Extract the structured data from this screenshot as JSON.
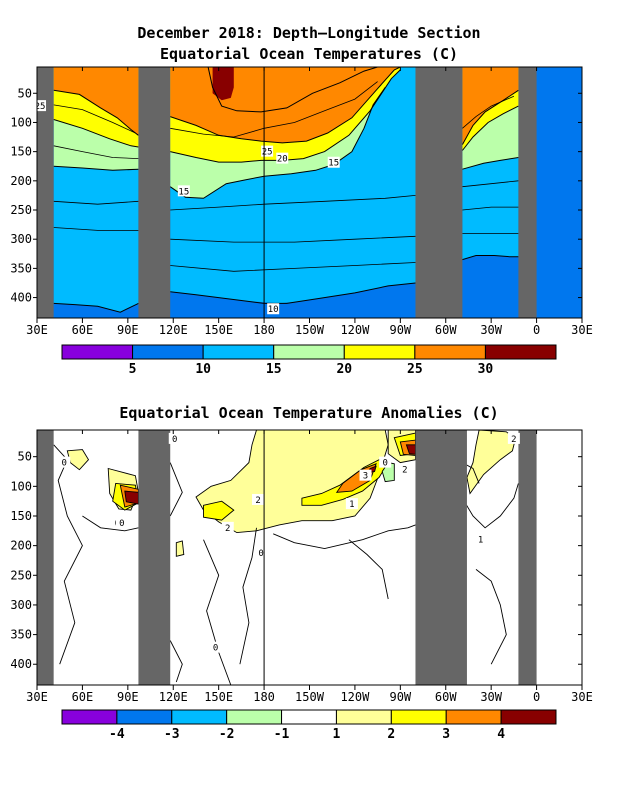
{
  "page": {
    "background": "#ffffff"
  },
  "chart_data": [
    {
      "type": "heatmap",
      "title": "December 2018: Depth—Longitude Section",
      "subtitle": "Equatorial Ocean Temperatures (C)",
      "x_ticks": [
        "30E",
        "60E",
        "90E",
        "120E",
        "150E",
        "180",
        "150W",
        "120W",
        "90W",
        "60W",
        "30W",
        "0",
        "30E"
      ],
      "y_ticks": [
        "50",
        "100",
        "150",
        "200",
        "250",
        "300",
        "350",
        "400"
      ],
      "ylim": [
        435,
        5
      ],
      "land_color": "#666666",
      "land_masks_lon": [
        [
          30,
          41
        ],
        [
          97,
          118
        ],
        [
          280,
          311
        ],
        [
          348,
          360
        ]
      ],
      "colorbar": {
        "colors": [
          "#8800dd",
          "#0077ee",
          "#00bbff",
          "#bbffaa",
          "#ffff00",
          "#ff8800",
          "#880000"
        ],
        "bounds": [
          0,
          5,
          10,
          15,
          20,
          25,
          30,
          35
        ],
        "labels": [
          "5",
          "10",
          "15",
          "20",
          "25",
          "30"
        ]
      },
      "contour_labels": [
        {
          "text": "25",
          "lon": 32,
          "depth": 72
        },
        {
          "text": "15",
          "lon": 127,
          "depth": 218
        },
        {
          "text": "25",
          "lon": 182,
          "depth": 150
        },
        {
          "text": "20",
          "lon": 192,
          "depth": 162
        },
        {
          "text": "15",
          "lon": 226,
          "depth": 169
        },
        {
          "text": "10",
          "lon": 186,
          "depth": 420
        }
      ],
      "isotherms": [
        {
          "temp": 28,
          "west": [
            [
              41,
              5
            ],
            [
              97,
              5
            ]
          ],
          "mid": [
            [
              118,
              5
            ],
            [
              143,
              5
            ],
            [
              146,
              40
            ],
            [
              152,
              72
            ],
            [
              162,
              80
            ],
            [
              178,
              82
            ],
            [
              195,
              75
            ],
            [
              212,
              50
            ],
            [
              230,
              32
            ],
            [
              246,
              12
            ],
            [
              255,
              5
            ]
          ],
          "east": [
            [
              311,
              5
            ],
            [
              345,
              5
            ]
          ]
        },
        {
          "temp": 25,
          "west": [
            [
              41,
              45
            ],
            [
              58,
              52
            ],
            [
              72,
              75
            ],
            [
              83,
              92
            ],
            [
              92,
              112
            ],
            [
              97,
              122
            ]
          ],
          "mid": [
            [
              118,
              90
            ],
            [
              135,
              105
            ],
            [
              150,
              122
            ],
            [
              165,
              128
            ],
            [
              178,
              132
            ],
            [
              192,
              135
            ],
            [
              208,
              132
            ],
            [
              222,
              118
            ],
            [
              238,
              92
            ],
            [
              254,
              45
            ],
            [
              266,
              10
            ],
            [
              270,
              5
            ]
          ],
          "east": [
            [
              311,
              138
            ],
            [
              318,
              105
            ],
            [
              326,
              82
            ],
            [
              338,
              62
            ],
            [
              348,
              45
            ]
          ]
        },
        {
          "temp": 20,
          "west": [
            [
              41,
              95
            ],
            [
              60,
              110
            ],
            [
              78,
              128
            ],
            [
              92,
              140
            ],
            [
              97,
              142
            ]
          ],
          "mid": [
            [
              118,
              150
            ],
            [
              135,
              160
            ],
            [
              150,
              168
            ],
            [
              165,
              168
            ],
            [
              178,
              165
            ],
            [
              192,
              165
            ],
            [
              206,
              162
            ],
            [
              220,
              150
            ],
            [
              236,
              122
            ],
            [
              250,
              80
            ],
            [
              264,
              25
            ],
            [
              270,
              10
            ]
          ],
          "east": [
            [
              311,
              148
            ],
            [
              318,
              125
            ],
            [
              328,
              100
            ],
            [
              338,
              85
            ],
            [
              348,
              72
            ]
          ]
        },
        {
          "temp": 15,
          "west": [
            [
              41,
              175
            ],
            [
              60,
              178
            ],
            [
              80,
              182
            ],
            [
              97,
              180
            ]
          ],
          "mid": [
            [
              118,
              210
            ],
            [
              128,
              228
            ],
            [
              140,
              230
            ],
            [
              155,
              205
            ],
            [
              168,
              198
            ],
            [
              180,
              192
            ],
            [
              198,
              188
            ],
            [
              214,
              182
            ],
            [
              226,
              172
            ],
            [
              238,
              150
            ],
            [
              246,
              110
            ],
            [
              252,
              70
            ],
            [
              260,
              40
            ]
          ],
          "east": [
            [
              311,
              180
            ],
            [
              325,
              170
            ],
            [
              336,
              165
            ],
            [
              348,
              160
            ]
          ]
        },
        {
          "temp": 10,
          "west": [
            [
              41,
              410
            ],
            [
              55,
              412
            ],
            [
              70,
              415
            ],
            [
              85,
              425
            ],
            [
              97,
              410
            ]
          ],
          "mid": [
            [
              118,
              390
            ],
            [
              135,
              395
            ],
            [
              150,
              400
            ],
            [
              165,
              405
            ],
            [
              180,
              410
            ],
            [
              195,
              410
            ],
            [
              215,
              402
            ],
            [
              240,
              392
            ],
            [
              262,
              380
            ],
            [
              280,
              375
            ]
          ],
          "east": [
            [
              311,
              335
            ],
            [
              320,
              328
            ],
            [
              332,
              328
            ],
            [
              342,
              330
            ],
            [
              348,
              330
            ]
          ]
        }
      ]
    },
    {
      "type": "heatmap",
      "title": "Equatorial Ocean Temperature Anomalies (C)",
      "x_ticks": [
        "30E",
        "60E",
        "90E",
        "120E",
        "150E",
        "180",
        "150W",
        "120W",
        "90W",
        "60W",
        "30W",
        "0",
        "30E"
      ],
      "y_ticks": [
        "50",
        "100",
        "150",
        "200",
        "250",
        "300",
        "350",
        "400"
      ],
      "ylim": [
        435,
        5
      ],
      "land_color": "#666666",
      "land_masks_lon": [
        [
          30,
          41
        ],
        [
          97,
          118
        ],
        [
          280,
          314
        ],
        [
          348,
          360
        ]
      ],
      "colorbar": {
        "colors": [
          "#8800dd",
          "#0077ee",
          "#00bbff",
          "#bbffaa",
          "#ffffff",
          "#ffff99",
          "#ffff00",
          "#ff8800",
          "#880000"
        ],
        "bounds": [
          -5,
          -4,
          -3,
          -2,
          -1,
          1,
          2,
          3,
          4,
          5
        ],
        "labels": [
          "-4",
          "-3",
          "-2",
          "-1",
          "1",
          "2",
          "3",
          "4"
        ]
      },
      "contour_labels": [
        {
          "text": "0",
          "lon": 48,
          "depth": 60
        },
        {
          "text": "0",
          "lon": 121,
          "depth": 20
        },
        {
          "text": "0",
          "lon": 83,
          "depth": 162
        },
        {
          "text": "0",
          "lon": 86,
          "depth": 162
        },
        {
          "text": "2",
          "lon": 176,
          "depth": 123
        },
        {
          "text": "2",
          "lon": 156,
          "depth": 170
        },
        {
          "text": "0",
          "lon": 178,
          "depth": 212
        },
        {
          "text": "1",
          "lon": 238,
          "depth": 130
        },
        {
          "text": "3",
          "lon": 247,
          "depth": 82
        },
        {
          "text": "0",
          "lon": 260,
          "depth": 60
        },
        {
          "text": "2",
          "lon": 273,
          "depth": 72
        },
        {
          "text": "2",
          "lon": 345,
          "depth": 20
        },
        {
          "text": "1",
          "lon": 323,
          "depth": 190
        },
        {
          "text": "0",
          "lon": 148,
          "depth": 372
        }
      ],
      "anomaly_regions": [
        {
          "value": 1.5,
          "poly": [
            [
              175,
              5
            ],
            [
              260,
              5
            ],
            [
              262,
              30
            ],
            [
              256,
              80
            ],
            [
              250,
              120
            ],
            [
              240,
              150
            ],
            [
              225,
              158
            ],
            [
              205,
              158
            ],
            [
              190,
              165
            ],
            [
              175,
              175
            ],
            [
              162,
              178
            ],
            [
              150,
              160
            ],
            [
              140,
              140
            ],
            [
              135,
              118
            ],
            [
              145,
              100
            ],
            [
              158,
              90
            ],
            [
              170,
              60
            ],
            [
              172,
              30
            ]
          ]
        },
        {
          "value": 1.5,
          "poly": [
            [
              262,
              5
            ],
            [
              280,
              5
            ],
            [
              280,
              55
            ],
            [
              270,
              60
            ],
            [
              262,
              45
            ]
          ]
        },
        {
          "value": 1.5,
          "poly": [
            [
              322,
              5
            ],
            [
              340,
              8
            ],
            [
              346,
              20
            ],
            [
              344,
              40
            ],
            [
              336,
              55
            ],
            [
              325,
              80
            ],
            [
              316,
              112
            ],
            [
              314,
              85
            ],
            [
              318,
              60
            ],
            [
              320,
              30
            ]
          ]
        },
        {
          "value": 1.5,
          "poly": [
            [
              50,
              40
            ],
            [
              60,
              38
            ],
            [
              64,
              55
            ],
            [
              58,
              72
            ],
            [
              52,
              60
            ]
          ]
        },
        {
          "value": 1.5,
          "poly": [
            [
              77,
              70
            ],
            [
              95,
              82
            ],
            [
              97,
              110
            ],
            [
              92,
              140
            ],
            [
              84,
              138
            ],
            [
              78,
              112
            ]
          ]
        },
        {
          "value": 2.5,
          "poly": [
            [
              205,
              120
            ],
            [
              218,
              112
            ],
            [
              230,
              98
            ],
            [
              246,
              68
            ],
            [
              256,
              55
            ],
            [
              262,
              60
            ],
            [
              256,
              85
            ],
            [
              245,
              108
            ],
            [
              232,
              122
            ],
            [
              218,
              132
            ],
            [
              205,
              132
            ]
          ]
        },
        {
          "value": 2.5,
          "poly": [
            [
              140,
              132
            ],
            [
              152,
              125
            ],
            [
              160,
              140
            ],
            [
              152,
              157
            ],
            [
              140,
              152
            ]
          ]
        },
        {
          "value": 2.5,
          "poly": [
            [
              82,
              95
            ],
            [
              95,
              98
            ],
            [
              97,
              128
            ],
            [
              88,
              140
            ],
            [
              80,
              125
            ]
          ]
        },
        {
          "value": 2.5,
          "poly": [
            [
              266,
              18
            ],
            [
              280,
              10
            ],
            [
              280,
              45
            ],
            [
              270,
              48
            ]
          ]
        },
        {
          "value": 3.5,
          "poly": [
            [
              232,
              95
            ],
            [
              244,
              72
            ],
            [
              254,
              62
            ],
            [
              250,
              90
            ],
            [
              238,
              108
            ],
            [
              228,
              110
            ]
          ]
        },
        {
          "value": 3.5,
          "poly": [
            [
              85,
              98
            ],
            [
              97,
              105
            ],
            [
              97,
              128
            ],
            [
              88,
              135
            ]
          ]
        },
        {
          "value": 3.5,
          "poly": [
            [
              270,
              25
            ],
            [
              280,
              22
            ],
            [
              280,
              48
            ],
            [
              272,
              46
            ]
          ]
        },
        {
          "value": 4.5,
          "poly": [
            [
              88,
              108
            ],
            [
              97,
              110
            ],
            [
              97,
              130
            ],
            [
              89,
              126
            ]
          ]
        },
        {
          "value": 4.5,
          "poly": [
            [
              274,
              30
            ],
            [
              280,
              30
            ],
            [
              280,
              46
            ],
            [
              276,
              45
            ]
          ]
        },
        {
          "value": 4.5,
          "poly": [
            [
              250,
              70
            ],
            [
              254,
              66
            ],
            [
              253,
              75
            ],
            [
              249,
              77
            ]
          ]
        },
        {
          "value": -1.5,
          "poly": [
            [
              262,
              60
            ],
            [
              266,
              62
            ],
            [
              266,
              90
            ],
            [
              260,
              92
            ],
            [
              258,
              75
            ]
          ]
        },
        {
          "value": 1.5,
          "poly": [
            [
              122,
              195
            ],
            [
              126,
              192
            ],
            [
              127,
              215
            ],
            [
              122,
              218
            ]
          ]
        }
      ]
    }
  ]
}
